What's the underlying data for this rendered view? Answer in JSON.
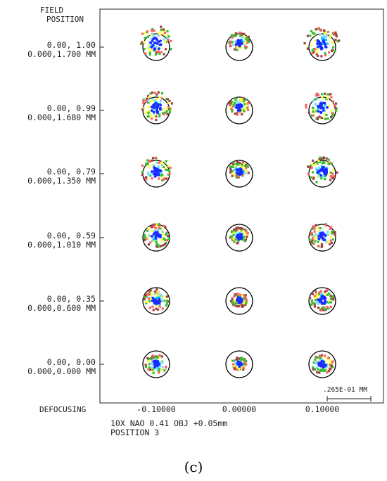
{
  "chart_data": {
    "type": "scatter",
    "title": "",
    "header": [
      "FIELD",
      "POSITION"
    ],
    "x_label": "DEFOCUSING",
    "defocus_values": [
      "-0.10000",
      "0.00000",
      "0.10000"
    ],
    "field_positions": [
      {
        "normalized": "0.00, 1.00",
        "mm": "0.000,1.700 MM"
      },
      {
        "normalized": "0.00, 0.99",
        "mm": "0.000,1.680 MM"
      },
      {
        "normalized": "0.00, 0.79",
        "mm": "0.000,1.350 MM"
      },
      {
        "normalized": "0.00, 0.59",
        "mm": "0.000,1.010 MM"
      },
      {
        "normalized": "0.00, 0.35",
        "mm": "0.000,0.600 MM"
      },
      {
        "normalized": "0.00, 0.00",
        "mm": "0.000,0.000 MM"
      }
    ],
    "scale_bar": ".265E-01 MM",
    "footer": [
      "10X NAO 0.41 OBJ +0.05mm",
      "POSITION 3"
    ],
    "ray_colors": [
      "#1a2cff",
      "#00c8ff",
      "#7fd8ff",
      "#ffff40",
      "#30c030",
      "#ff6060",
      "#a04040"
    ],
    "circle_color": "#000000"
  },
  "caption": "(c)"
}
